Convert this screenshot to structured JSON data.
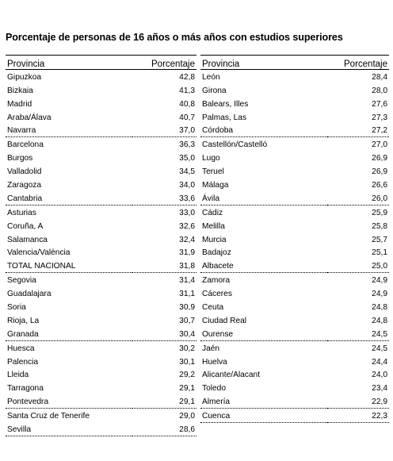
{
  "title": "Porcentaje de personas de 16 años o más años con estudios superiores",
  "headers": {
    "provincia": "Provincia",
    "porcentaje": "Porcentaje"
  },
  "left": [
    {
      "name": "Gipuzkoa",
      "value": "42,8"
    },
    {
      "name": "Bizkaia",
      "value": "41,3"
    },
    {
      "name": "Madrid",
      "value": "40,8"
    },
    {
      "name": "Araba/Álava",
      "value": "40,7"
    },
    {
      "name": "Navarra",
      "value": "37,0"
    },
    {
      "name": "Barcelona",
      "value": "36,3"
    },
    {
      "name": "Burgos",
      "value": "35,0"
    },
    {
      "name": "Valladolid",
      "value": "34,5"
    },
    {
      "name": "Zaragoza",
      "value": "34,0"
    },
    {
      "name": "Cantabria",
      "value": "33,6"
    },
    {
      "name": "Asturias",
      "value": "33,0"
    },
    {
      "name": "Coruña, A",
      "value": "32,6"
    },
    {
      "name": "Salamanca",
      "value": "32,4"
    },
    {
      "name": "Valencia/València",
      "value": "31,9"
    },
    {
      "name": "TOTAL NACIONAL",
      "value": "31,8"
    },
    {
      "name": "Segovia",
      "value": "31,4"
    },
    {
      "name": "Guadalajara",
      "value": "31,1"
    },
    {
      "name": "Soria",
      "value": "30,9"
    },
    {
      "name": "Rioja, La",
      "value": "30,7"
    },
    {
      "name": "Granada",
      "value": "30,4"
    },
    {
      "name": "Huesca",
      "value": "30,2"
    },
    {
      "name": "Palencia",
      "value": "30,1"
    },
    {
      "name": "Lleida",
      "value": "29,2"
    },
    {
      "name": "Tarragona",
      "value": "29,1"
    },
    {
      "name": "Pontevedra",
      "value": "29,1"
    },
    {
      "name": "Santa Cruz de Tenerife",
      "value": "29,0"
    },
    {
      "name": "Sevilla",
      "value": "28,6"
    }
  ],
  "right": [
    {
      "name": "León",
      "value": "28,4"
    },
    {
      "name": "Girona",
      "value": "28,0"
    },
    {
      "name": "Balears, Illes",
      "value": "27,6"
    },
    {
      "name": "Palmas, Las",
      "value": "27,3"
    },
    {
      "name": "Córdoba",
      "value": "27,2"
    },
    {
      "name": "Castellón/Castelló",
      "value": "27,0"
    },
    {
      "name": "Lugo",
      "value": "26,9"
    },
    {
      "name": "Teruel",
      "value": "26,9"
    },
    {
      "name": "Málaga",
      "value": "26,6"
    },
    {
      "name": "Ávila",
      "value": "26,0"
    },
    {
      "name": "Cádiz",
      "value": "25,9"
    },
    {
      "name": "Melilla",
      "value": "25,8"
    },
    {
      "name": "Murcia",
      "value": "25,7"
    },
    {
      "name": "Badajoz",
      "value": "25,1"
    },
    {
      "name": "Albacete",
      "value": "25,0"
    },
    {
      "name": "Zamora",
      "value": "24,9"
    },
    {
      "name": "Cáceres",
      "value": "24,9"
    },
    {
      "name": "Ceuta",
      "value": "24,8"
    },
    {
      "name": "Ciudad Real",
      "value": "24,8"
    },
    {
      "name": "Ourense",
      "value": "24,5"
    },
    {
      "name": "Jaén",
      "value": "24,5"
    },
    {
      "name": "Huelva",
      "value": "24,4"
    },
    {
      "name": "Alicante/Alacant",
      "value": "24,0"
    },
    {
      "name": "Toledo",
      "value": "23,4"
    },
    {
      "name": "Almería",
      "value": "22,9"
    },
    {
      "name": "Cuenca",
      "value": "22,3"
    }
  ]
}
